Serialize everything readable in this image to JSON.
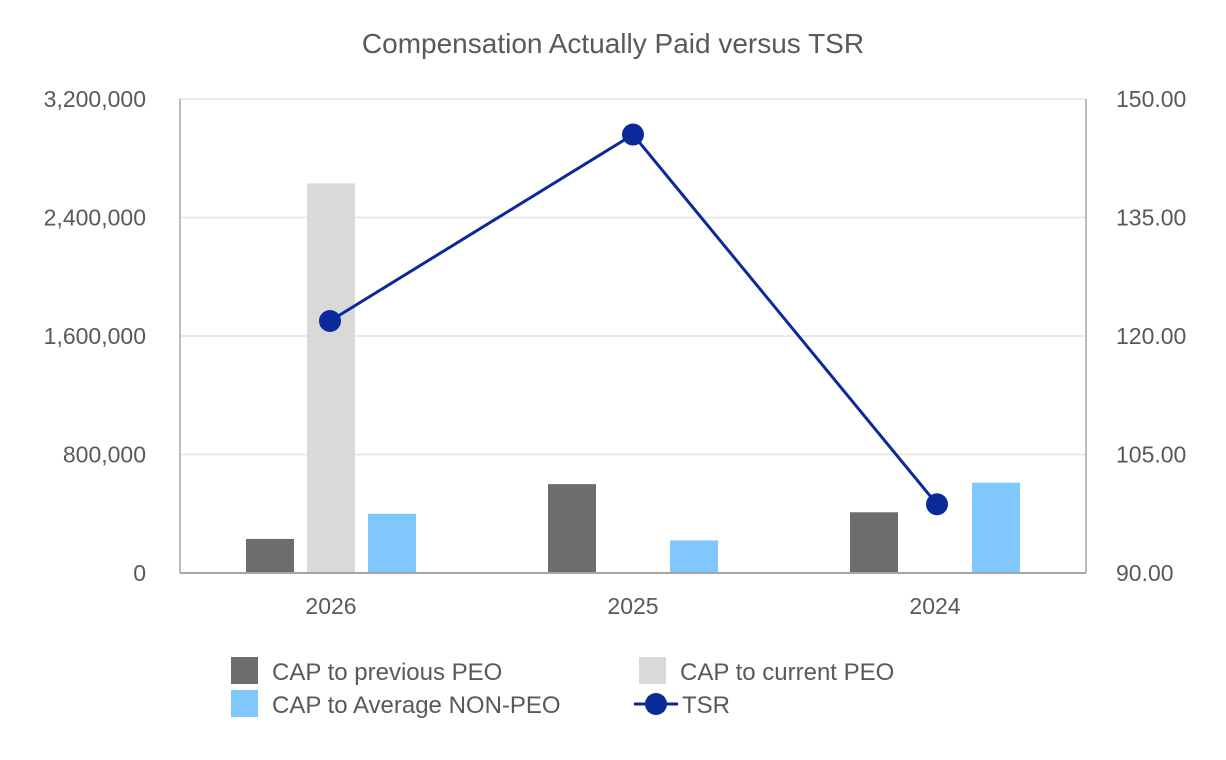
{
  "chart_data": {
    "type": "bar",
    "title": "Compensation Actually Paid versus TSR",
    "categories": [
      "2026",
      "2025",
      "2024"
    ],
    "series": [
      {
        "name": "CAP to previous PEO",
        "kind": "bar",
        "axis": "left",
        "color": "#6d6d6d",
        "values": [
          230000,
          600000,
          410000
        ]
      },
      {
        "name": "CAP to current PEO",
        "kind": "bar",
        "axis": "left",
        "color": "#d9d9d9",
        "values": [
          2630000,
          null,
          null
        ]
      },
      {
        "name": "CAP to Average NON-PEO",
        "kind": "bar",
        "axis": "left",
        "color": "#80c7fd",
        "values": [
          400000,
          220000,
          610000
        ]
      },
      {
        "name": "TSR",
        "kind": "line",
        "axis": "right",
        "color": "#0a2a9c",
        "values": [
          121.9,
          145.5,
          98.7
        ]
      }
    ],
    "y_left": {
      "lim": [
        0,
        3200000
      ],
      "ticks": [
        0,
        800000,
        1600000,
        2400000,
        3200000
      ],
      "tick_labels": [
        "0",
        "800,000",
        "1,600,000",
        "2,400,000",
        "3,200,000"
      ]
    },
    "y_right": {
      "lim": [
        90,
        150
      ],
      "ticks": [
        90,
        105,
        120,
        135,
        150
      ],
      "tick_labels": [
        "90.00",
        "105.00",
        "120.00",
        "135.00",
        "150.00"
      ]
    },
    "grid": true,
    "legend_position": "bottom"
  }
}
